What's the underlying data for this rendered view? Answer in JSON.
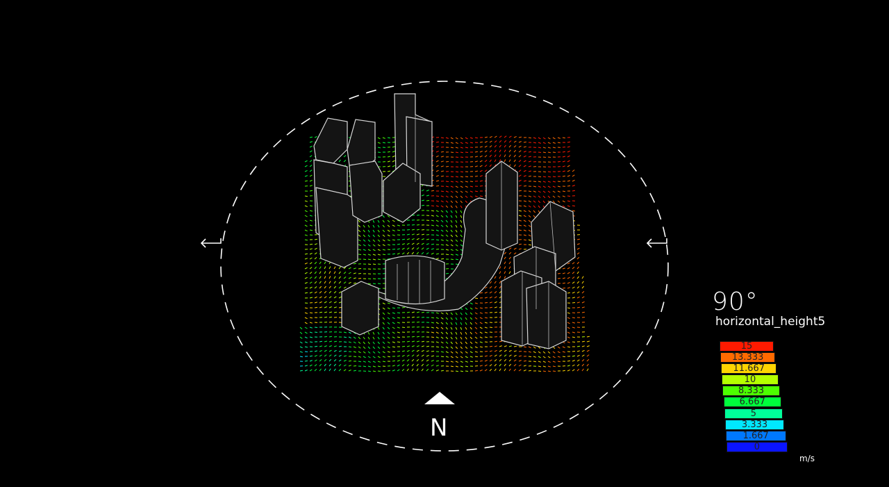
{
  "view": {
    "angle": "90°",
    "caption": "horizontal_height5",
    "north_label": "N"
  },
  "legend": {
    "unit": "m/s",
    "entries": [
      {
        "label": "15",
        "color": "#ff1a00"
      },
      {
        "label": "13.333",
        "color": "#ff6a00"
      },
      {
        "label": "11.667",
        "color": "#ffd400"
      },
      {
        "label": "10",
        "color": "#b4ff00"
      },
      {
        "label": "8.333",
        "color": "#4dff00"
      },
      {
        "label": "6.667",
        "color": "#00ff3c"
      },
      {
        "label": "5",
        "color": "#00ff9a"
      },
      {
        "label": "3.333",
        "color": "#00e8ff"
      },
      {
        "label": "1.667",
        "color": "#0078ff"
      },
      {
        "label": "0",
        "color": "#0a14ff"
      }
    ]
  },
  "colors": {
    "background": "#000000",
    "lines": "#ffffff",
    "building_fill": "#1a1a1a",
    "building_stroke": "#d8d8d8"
  }
}
